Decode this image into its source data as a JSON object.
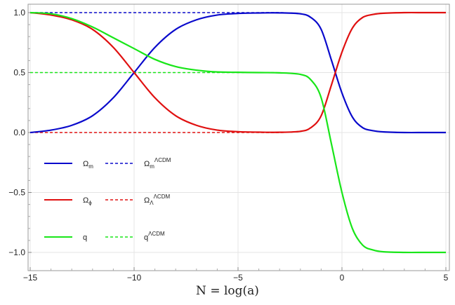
{
  "chart_data": {
    "type": "line",
    "title": "",
    "xlabel": "N = log(a)",
    "ylabel": "",
    "xlim": [
      -15,
      5
    ],
    "ylim": [
      -1.1,
      1.05
    ],
    "grid": true,
    "x_ticks": [
      -15,
      -10,
      -5,
      0,
      5
    ],
    "x_tick_labels": [
      "−15",
      "−10",
      "−5",
      "0",
      "5"
    ],
    "y_ticks": [
      1.0,
      0.5,
      0.0,
      -0.5,
      -1.0
    ],
    "y_tick_labels": [
      "1.0",
      "0.5",
      "0.0",
      "−0.5",
      "−1.0"
    ],
    "legend_placement": "left",
    "colors": {
      "blue": "#0a0acc",
      "red": "#e01010",
      "green": "#19e619"
    },
    "series": [
      {
        "name": "Ωm",
        "sub": "m",
        "sup": "",
        "color": "#0a0acc",
        "style": "solid",
        "x": [
          -15,
          -14,
          -13,
          -12,
          -11,
          -10,
          -9,
          -8,
          -7,
          -6,
          -5,
          -4,
          -3,
          -2,
          -1.5,
          -1,
          -0.5,
          0,
          0.5,
          1,
          1.5,
          2,
          3,
          4,
          5
        ],
        "y": [
          0.0,
          0.02,
          0.06,
          0.14,
          0.29,
          0.5,
          0.71,
          0.86,
          0.94,
          0.98,
          0.993,
          0.997,
          0.998,
          0.99,
          0.96,
          0.86,
          0.6,
          0.33,
          0.13,
          0.04,
          0.015,
          0.005,
          0.0,
          0.0,
          0.0
        ]
      },
      {
        "name": "Ωm",
        "sub": "m",
        "sup": "ΛCDM",
        "color": "#0a0acc",
        "style": "dashed",
        "x": [
          -15,
          -14,
          -13,
          -12,
          -11,
          -10,
          -9,
          -8,
          -7,
          -6,
          -5,
          -4,
          -3,
          -2,
          -1.5,
          -1,
          -0.5,
          0,
          0.5,
          1,
          1.5,
          2,
          3,
          4,
          5
        ],
        "y": [
          1.0,
          1.0,
          1.0,
          1.0,
          1.0,
          1.0,
          1.0,
          1.0,
          1.0,
          1.0,
          1.0,
          1.0,
          1.0,
          0.99,
          0.96,
          0.86,
          0.6,
          0.33,
          0.13,
          0.04,
          0.015,
          0.005,
          0.0,
          0.0,
          0.0
        ]
      },
      {
        "name": "Ωϕ",
        "sub": "ϕ",
        "sup": "",
        "color": "#e01010",
        "style": "solid",
        "x": [
          -15,
          -14,
          -13,
          -12,
          -11,
          -10,
          -9,
          -8,
          -7,
          -6,
          -5,
          -4,
          -3,
          -2,
          -1.5,
          -1,
          -0.5,
          0,
          0.5,
          1,
          1.5,
          2,
          3,
          4,
          5
        ],
        "y": [
          1.0,
          0.98,
          0.94,
          0.86,
          0.71,
          0.5,
          0.29,
          0.14,
          0.06,
          0.02,
          0.007,
          0.003,
          0.002,
          0.01,
          0.04,
          0.14,
          0.4,
          0.67,
          0.87,
          0.96,
          0.985,
          0.995,
          1.0,
          1.0,
          1.0
        ]
      },
      {
        "name": "ΩΛ",
        "sub": "Λ",
        "sup": "ΛCDM",
        "color": "#e01010",
        "style": "dashed",
        "x": [
          -15,
          -14,
          -13,
          -12,
          -11,
          -10,
          -9,
          -8,
          -7,
          -6,
          -5,
          -4,
          -3,
          -2,
          -1.5,
          -1,
          -0.5,
          0,
          0.5,
          1,
          1.5,
          2,
          3,
          4,
          5
        ],
        "y": [
          0.0,
          0.0,
          0.0,
          0.0,
          0.0,
          0.0,
          0.0,
          0.0,
          0.0,
          0.0,
          0.0,
          0.0,
          0.0,
          0.01,
          0.04,
          0.14,
          0.4,
          0.67,
          0.87,
          0.96,
          0.985,
          0.995,
          1.0,
          1.0,
          1.0
        ]
      },
      {
        "name": "q",
        "sub": "",
        "sup": "",
        "color": "#19e619",
        "style": "solid",
        "x": [
          -15,
          -14,
          -13,
          -12,
          -11,
          -10,
          -9,
          -8,
          -7,
          -6,
          -5,
          -4,
          -3,
          -2,
          -1.5,
          -1,
          -0.5,
          0,
          0.5,
          1,
          1.5,
          2,
          3,
          4,
          5
        ],
        "y": [
          1.0,
          0.99,
          0.95,
          0.88,
          0.79,
          0.7,
          0.61,
          0.55,
          0.52,
          0.505,
          0.502,
          0.5,
          0.498,
          0.485,
          0.44,
          0.29,
          -0.1,
          -0.5,
          -0.8,
          -0.94,
          -0.98,
          -0.995,
          -1.0,
          -1.0,
          -1.0
        ]
      },
      {
        "name": "q",
        "sub": "",
        "sup": "ΛCDM",
        "color": "#19e619",
        "style": "dashed",
        "x": [
          -15,
          -14,
          -13,
          -12,
          -11,
          -10,
          -9,
          -8,
          -7,
          -6,
          -5,
          -4,
          -3,
          -2,
          -1.5,
          -1,
          -0.5,
          0,
          0.5,
          1,
          1.5,
          2,
          3,
          4,
          5
        ],
        "y": [
          0.5,
          0.5,
          0.5,
          0.5,
          0.5,
          0.5,
          0.5,
          0.5,
          0.5,
          0.5,
          0.5,
          0.5,
          0.498,
          0.485,
          0.44,
          0.29,
          -0.1,
          -0.5,
          -0.8,
          -0.94,
          -0.98,
          -0.995,
          -1.0,
          -1.0,
          -1.0
        ]
      }
    ]
  }
}
